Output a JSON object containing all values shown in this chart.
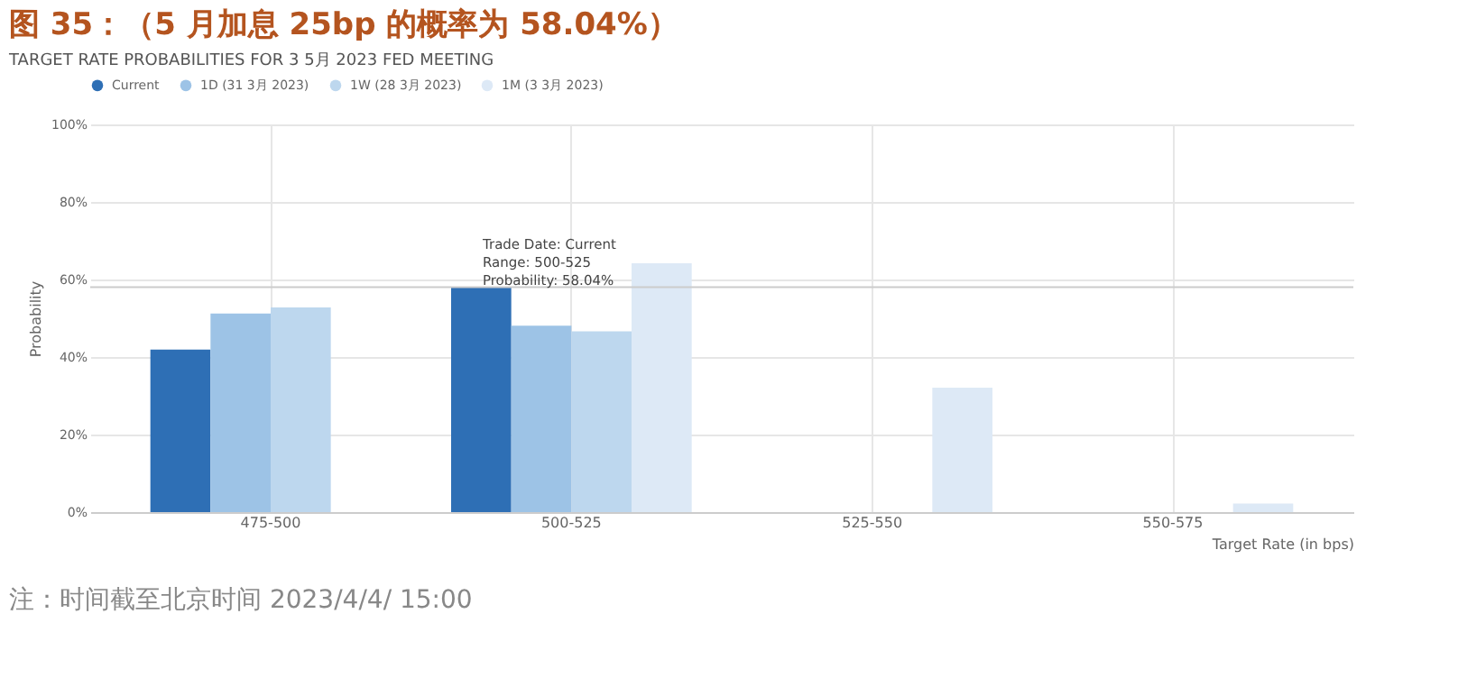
{
  "chart_data": {
    "type": "bar",
    "title": "图 35：（5 月加息 25bp 的概率为 58.04%）",
    "subtitle": "TARGET RATE PROBABILITIES FOR 3 5月 2023 FED MEETING",
    "xlabel": "Target Rate (in bps)",
    "ylabel": "Probability",
    "categories": [
      "475-500",
      "500-525",
      "525-550",
      "550-575"
    ],
    "series": [
      {
        "name": "Current",
        "color": "#2e6fb5",
        "values": [
          41.9,
          58.04,
          0,
          0
        ]
      },
      {
        "name": "1D (31 3月 2023)",
        "color": "#9dc3e6",
        "values": [
          51.2,
          48.1,
          0,
          0
        ]
      },
      {
        "name": "1W (28 3月 2023)",
        "color": "#bdd7ee",
        "values": [
          52.8,
          46.6,
          0,
          0
        ]
      },
      {
        "name": "1M (3 3月 2023)",
        "color": "#dde9f6",
        "values": [
          0,
          64.2,
          32.1,
          2.2
        ]
      }
    ],
    "ylim": [
      0,
      100
    ],
    "yticks": [
      {
        "value": 0,
        "label": "0%"
      },
      {
        "value": 20,
        "label": "20%"
      },
      {
        "value": 40,
        "label": "40%"
      },
      {
        "value": 60,
        "label": "60%"
      },
      {
        "value": 80,
        "label": "80%"
      },
      {
        "value": 100,
        "label": "100%"
      }
    ],
    "grid": true,
    "legend": "top",
    "ref_lines": [
      {
        "axis": "y",
        "value": 58.04,
        "color": "#cccccc"
      }
    ],
    "annotations": [
      "Trade Date: Current\nRange: 500-525\nProbability: 58.04%",
      "注：时间截至北京时间 2023/4/4/ 15:00"
    ]
  }
}
